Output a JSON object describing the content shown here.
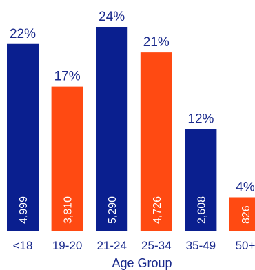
{
  "colors": {
    "blue": "#0a1f8f",
    "orange": "#ff4a12",
    "text": "#1a2a8c"
  },
  "chart_data": {
    "type": "bar",
    "title": "",
    "xlabel": "Age Group",
    "ylabel": "",
    "categories": [
      "<18",
      "19-20",
      "21-24",
      "25-34",
      "35-49",
      "50+"
    ],
    "values": [
      22,
      17,
      24,
      21,
      12,
      4
    ],
    "value_labels": [
      "22%",
      "17%",
      "24%",
      "21%",
      "12%",
      "4%"
    ],
    "counts": [
      "4,999",
      "3,810",
      "5,290",
      "4,726",
      "2,608",
      "826"
    ],
    "bar_colors": [
      "blue",
      "orange",
      "blue",
      "orange",
      "blue",
      "orange"
    ],
    "ylim": [
      0,
      24
    ],
    "grid": false,
    "legend": "none"
  }
}
